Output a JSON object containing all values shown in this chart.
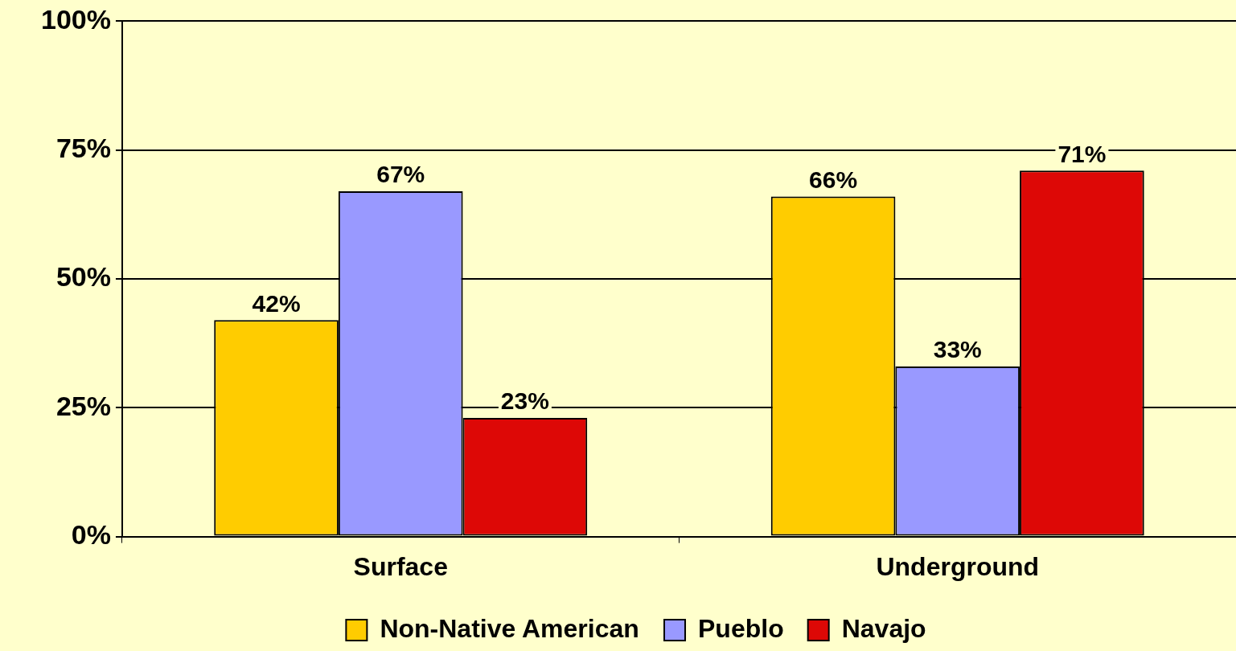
{
  "chart_data": {
    "type": "bar",
    "categories": [
      "Surface",
      "Underground"
    ],
    "series": [
      {
        "name": "Non-Native American",
        "color": "#ffcc00",
        "values": [
          42,
          66
        ],
        "value_labels": [
          "42%",
          "66%"
        ]
      },
      {
        "name": "Pueblo",
        "color": "#9999ff",
        "values": [
          67,
          33
        ],
        "value_labels": [
          "67%",
          "33%"
        ]
      },
      {
        "name": "Navajo",
        "color": "#dd0806",
        "values": [
          23,
          71
        ],
        "value_labels": [
          "23%",
          "71%"
        ]
      }
    ],
    "ylim": [
      0,
      100
    ],
    "yticks": [
      {
        "value": 0,
        "label": "0%"
      },
      {
        "value": 25,
        "label": "25%"
      },
      {
        "value": 50,
        "label": "50%"
      },
      {
        "value": 75,
        "label": "75%"
      },
      {
        "value": 100,
        "label": "100%"
      }
    ],
    "grid": "y",
    "legend": "bottom"
  }
}
